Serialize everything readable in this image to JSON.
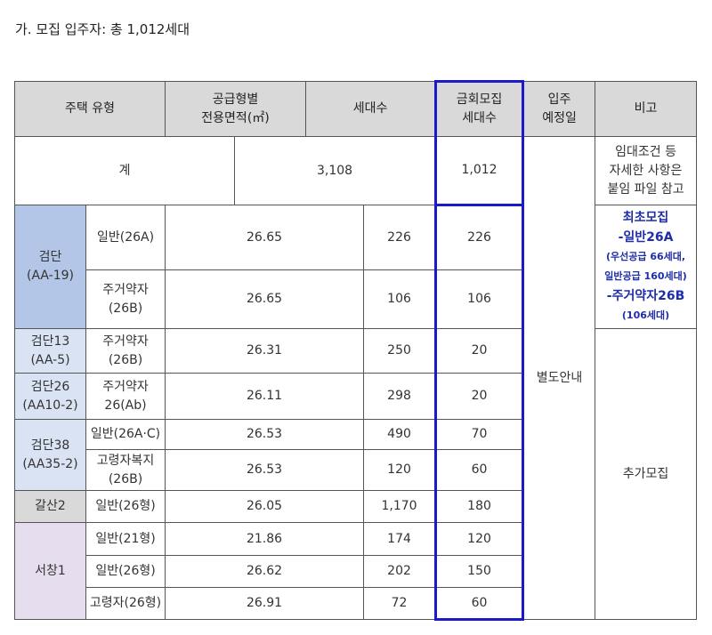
{
  "heading": "가. 모집 입주자: 총 1,012세대",
  "headers": {
    "type": "주택 유형",
    "area_line1": "공급형별",
    "area_line2": "전용면적(㎡)",
    "units": "세대수",
    "recruit_line1": "금회모집",
    "recruit_line2": "세대수",
    "move_line1": "입주",
    "move_line2": "예정일",
    "remarks": "비고"
  },
  "total": {
    "label": "계",
    "units": "3,108",
    "recruit": "1,012",
    "remark_line1": "임대조건 등",
    "remark_line2": "자세한 사항은",
    "remark_line3": "붙임 파일 참고"
  },
  "complexes": [
    {
      "name": "검단",
      "code": "(AA-19)"
    },
    {
      "name": "검단13",
      "code": "(AA-5)"
    },
    {
      "name": "검단26",
      "code": "(AA10-2)"
    },
    {
      "name": "검단38",
      "code": "(AA35-2)"
    },
    {
      "name": "갈산2"
    },
    {
      "name": "서창1"
    }
  ],
  "rows": [
    {
      "type": "일반(26A)",
      "area": "26.65",
      "units": "226",
      "recruit": "226"
    },
    {
      "type_line1": "주거약자",
      "type_line2": "(26B)",
      "area": "26.65",
      "units": "106",
      "recruit": "106"
    },
    {
      "type_line1": "주거약자",
      "type_line2": "(26B)",
      "area": "26.31",
      "units": "250",
      "recruit": "20"
    },
    {
      "type_line1": "주거약자",
      "type_line2": "26(Ab)",
      "area": "26.11",
      "units": "298",
      "recruit": "20"
    },
    {
      "type": "일반(26A·C)",
      "area": "26.53",
      "units": "490",
      "recruit": "70"
    },
    {
      "type_line1": "고령자복지",
      "type_line2": "(26B)",
      "area": "26.53",
      "units": "120",
      "recruit": "60"
    },
    {
      "type": "일반(26형)",
      "area": "26.05",
      "units": "1,170",
      "recruit": "180"
    },
    {
      "type": "일반(21형)",
      "area": "21.86",
      "units": "174",
      "recruit": "120"
    },
    {
      "type": "일반(26형)",
      "area": "26.62",
      "units": "202",
      "recruit": "150"
    },
    {
      "type": "고령자(26형)",
      "area": "26.91",
      "units": "72",
      "recruit": "60"
    }
  ],
  "move_in": "별도안내",
  "first_note": {
    "title": "최초모집",
    "item1": "-일반26A",
    "item1_detail1": "(우선공급 66세대,",
    "item1_detail2": "일반공급 160세대)",
    "item2": "-주거약자26B",
    "item2_detail": "(106세대)"
  },
  "additional": "추가모집",
  "colors": {
    "header_bg": "#d9d9d9",
    "geomdan_bg": "#b4c6e7",
    "light_blue_bg": "#dae3f3",
    "galsan_bg": "#d9d9d9",
    "seochang_bg": "#e6ddee",
    "highlight_border": "#1a1acb",
    "note_text": "#1f2ea8"
  }
}
